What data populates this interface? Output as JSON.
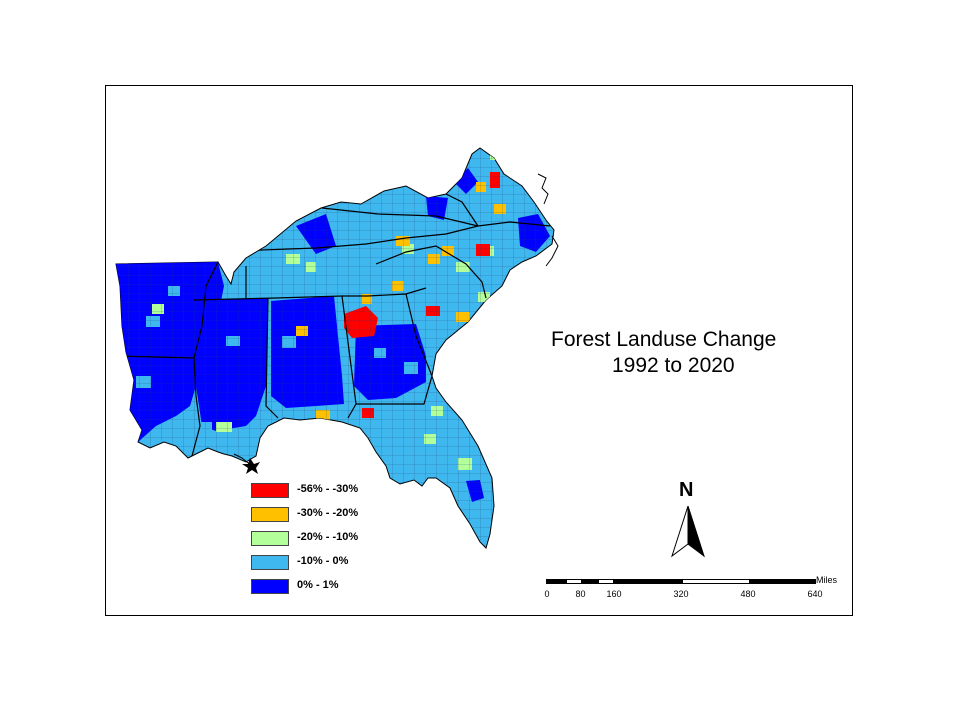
{
  "map": {
    "title_line1": "Forest Landuse Change",
    "title_line2": "1992 to 2020",
    "legend": [
      {
        "label": "-56% - -30%",
        "color": "#ff0000"
      },
      {
        "label": "-30% - -20%",
        "color": "#ffc000"
      },
      {
        "label": "-20% - -10%",
        "color": "#b3ff99"
      },
      {
        "label": "-10% - 0%",
        "color": "#3fb8f0"
      },
      {
        "label": "0% - 1%",
        "color": "#0000ff"
      }
    ],
    "north_label": "N",
    "scale": {
      "unit": "Miles",
      "ticks": [
        "0",
        "80",
        "160",
        "320",
        "480",
        "640"
      ]
    }
  }
}
